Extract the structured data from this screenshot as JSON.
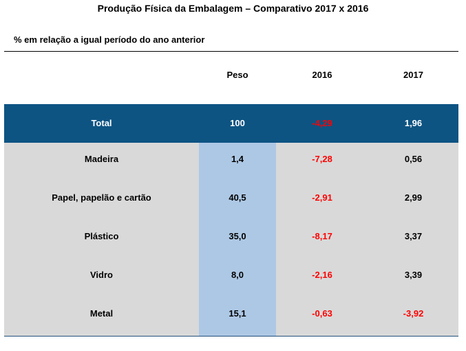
{
  "title": "Produção Física da Embalagem – Comparativo 2017 x 2016",
  "subtitle": "% em relação a igual período do ano anterior",
  "columns": [
    "",
    "Peso",
    "2016",
    "2017"
  ],
  "colors": {
    "header_band": "#0d5483",
    "body_band": "#d9d9d9",
    "peso_column": "#adc8e5",
    "negative_value": "#ff0000"
  },
  "rows": [
    {
      "label": "Total",
      "peso": "100",
      "y2016": "-4,29",
      "y2017": "1,96"
    },
    {
      "label": "Madeira",
      "peso": "1,4",
      "y2016": "-7,28",
      "y2017": "0,56"
    },
    {
      "label": "Papel, papelão e cartão",
      "peso": "40,5",
      "y2016": "-2,91",
      "y2017": "2,99"
    },
    {
      "label": "Plástico",
      "peso": "35,0",
      "y2016": "-8,17",
      "y2017": "3,37"
    },
    {
      "label": "Vidro",
      "peso": "8,0",
      "y2016": "-2,16",
      "y2017": "3,39"
    },
    {
      "label": "Metal",
      "peso": "15,1",
      "y2016": "-0,63",
      "y2017": "-3,92"
    }
  ]
}
